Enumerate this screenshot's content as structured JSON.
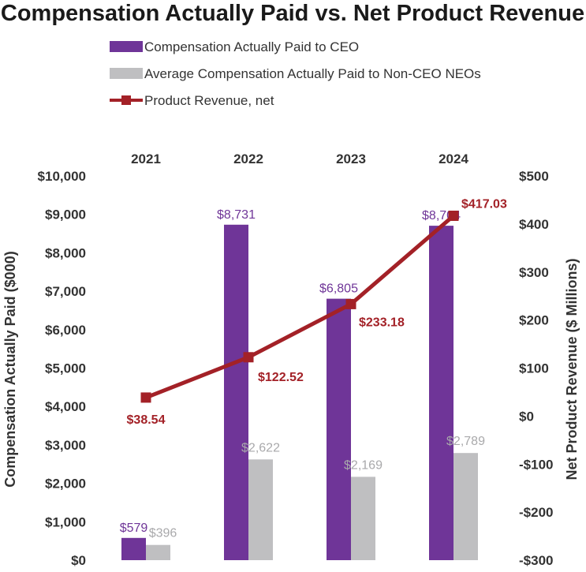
{
  "colors": {
    "ceo": "#6f3598",
    "neo": "#bfbfc1",
    "revenue": "#a32127",
    "text": "#333333"
  },
  "chart_data": {
    "type": "bar",
    "title": "Compensation Actually Paid vs. Net Product Revenue",
    "categories": [
      "2021",
      "2022",
      "2023",
      "2024"
    ],
    "series": [
      {
        "name": "Compensation Actually Paid to CEO",
        "kind": "bar",
        "axis": "left",
        "values": [
          579,
          8731,
          6805,
          8704
        ],
        "labels": [
          "$579",
          "$8,731",
          "$6,805",
          "$8,704"
        ]
      },
      {
        "name": "Average Compensation Actually Paid to Non-CEO NEOs",
        "kind": "bar",
        "axis": "left",
        "values": [
          396,
          2622,
          2169,
          2789
        ],
        "labels": [
          "$396",
          "$2,622",
          "$2,169",
          "$2,789"
        ]
      },
      {
        "name": "Product Revenue, net",
        "kind": "line",
        "axis": "right",
        "values": [
          38.54,
          122.52,
          233.18,
          417.03
        ],
        "labels": [
          "$38.54",
          "$122.52",
          "$233.18",
          "$417.03"
        ]
      }
    ],
    "y_left": {
      "label": "Compensation Actually Paid ($000)",
      "range": [
        0,
        10000
      ],
      "ticks": [
        0,
        1000,
        2000,
        3000,
        4000,
        5000,
        6000,
        7000,
        8000,
        9000,
        10000
      ],
      "tick_labels": [
        "$0",
        "$1,000",
        "$2,000",
        "$3,000",
        "$4,000",
        "$5,000",
        "$6,000",
        "$7,000",
        "$8,000",
        "$9,000",
        "$10,000"
      ]
    },
    "y_right": {
      "label": "Net Product Revenue ($ Millions)",
      "range": [
        -300,
        500
      ],
      "ticks": [
        -300,
        -200,
        -100,
        0,
        100,
        200,
        300,
        400,
        500
      ],
      "tick_labels": [
        "-$300",
        "-$200",
        "-$100",
        "$0",
        "$100",
        "$200",
        "$300",
        "$400",
        "$500"
      ]
    },
    "category_axis_position": "top",
    "legend_position": "top-left",
    "grid": false
  }
}
